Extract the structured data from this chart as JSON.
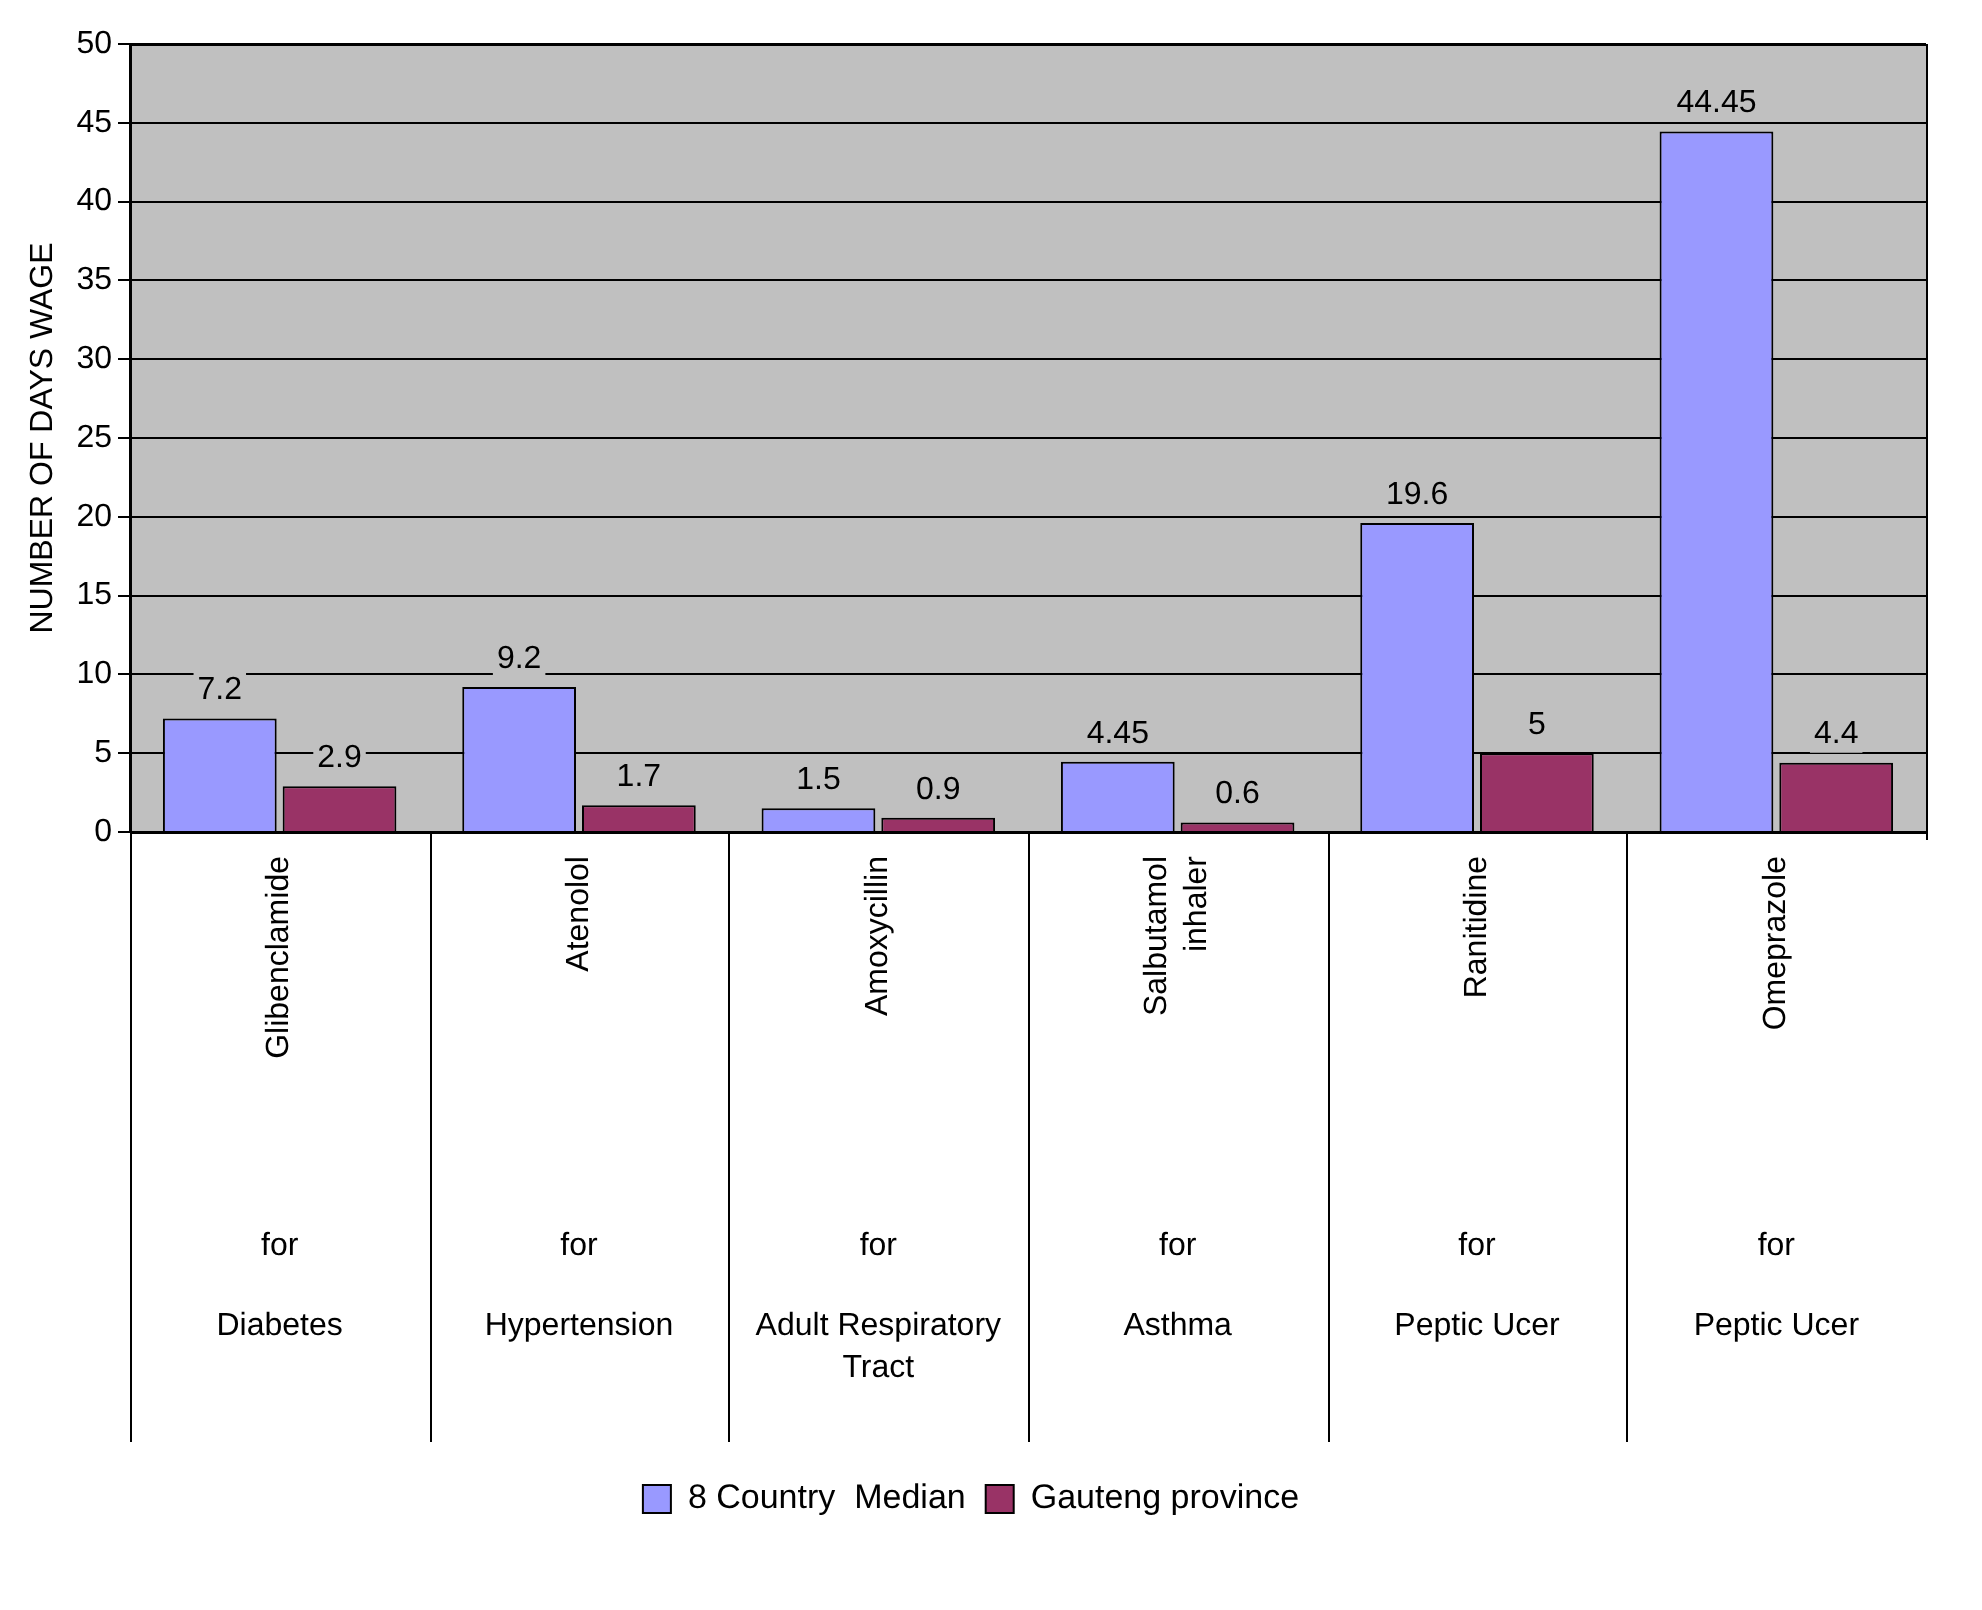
{
  "chart_data": {
    "type": "bar",
    "categories": [
      "Glibenclamide\nfor\nDiabetes",
      "Atenolol\nfor\nHypertension",
      "Amoxycillin\nfor\nAdult Respiratory Tract",
      "Salbutamol inhaler\nfor\nAsthma",
      "Ranitidine\nfor\nPeptic Ucer",
      "Omeprazole\nfor\nPeptic Ucer"
    ],
    "series": [
      {
        "name": "8 Country  Median",
        "color": "#9999ff",
        "values": [
          7.2,
          9.2,
          1.5,
          4.45,
          19.6,
          44.45
        ]
      },
      {
        "name": "Gauteng province",
        "color": "#993366",
        "values": [
          2.9,
          1.7,
          0.9,
          0.6,
          5,
          4.4
        ]
      }
    ],
    "ylabel": "NUMBER OF DAYS WAGE",
    "ylim": [
      0,
      50
    ],
    "yticks": [
      0,
      5,
      10,
      15,
      20,
      25,
      30,
      35,
      40,
      45,
      50
    ],
    "grid": "y",
    "legend": "bottom",
    "data_labels": true
  }
}
